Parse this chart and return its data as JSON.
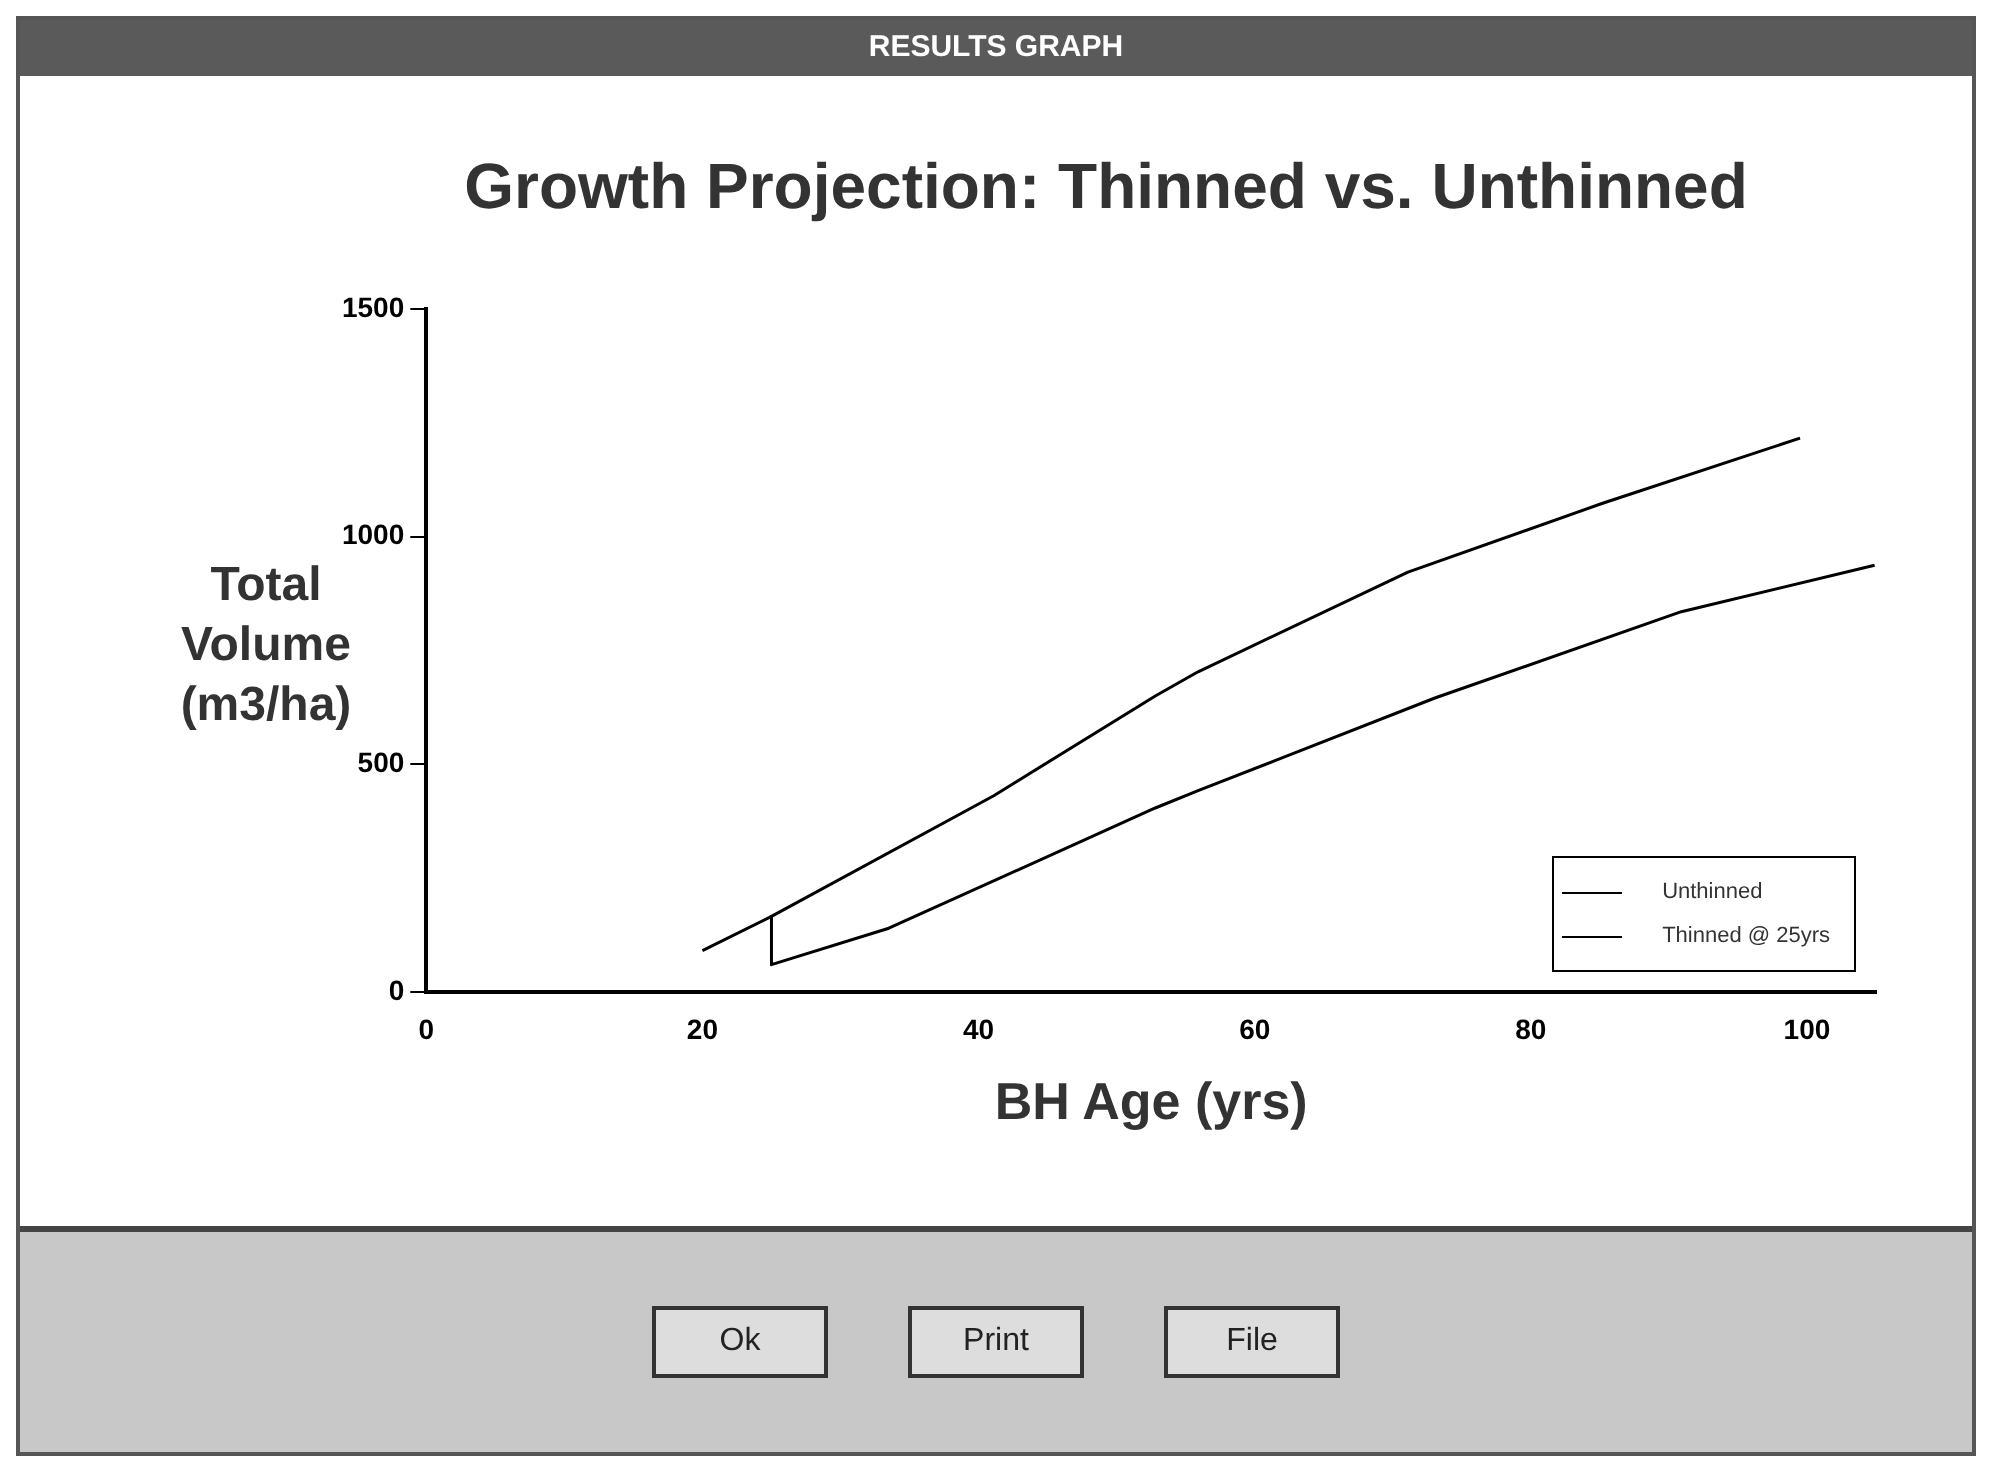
{
  "chart_data": {
    "type": "line",
    "title": "Growth Projection: Thinned vs. Unthinned",
    "xlabel": "BH Age (yrs)",
    "ylabel": "Total Volume (m3/ha)",
    "annotations": [
      "RESULTS GRAPH",
      "Ok",
      "Print",
      "File"
    ],
    "xlim": [
      0,
      105
    ],
    "xticks": [
      0,
      20,
      40,
      60,
      80,
      100
    ],
    "ylim": [
      0,
      1500
    ],
    "yticks": [
      0,
      500,
      1000,
      1500
    ],
    "grid": false,
    "legend": "bottom right",
    "marker": "none",
    "line_style": "solid",
    "series": [
      {
        "name": "Unthinned",
        "color": "#000000",
        "x": [
          20,
          25,
          41.1,
          52.8,
          55.9,
          71.1,
          85.2,
          99.5
        ],
        "values": [
          91,
          166,
          431,
          650,
          703,
          922,
          1073,
          1216
        ]
      },
      {
        "name": "Thinned @ 25yrs",
        "color": "#000000",
        "x": [
          25,
          25,
          33.5,
          52.8,
          55.9,
          73.1,
          90.9,
          104.9
        ],
        "values": [
          166,
          60,
          140,
          404,
          442,
          646,
          835,
          937
        ]
      }
    ]
  }
}
